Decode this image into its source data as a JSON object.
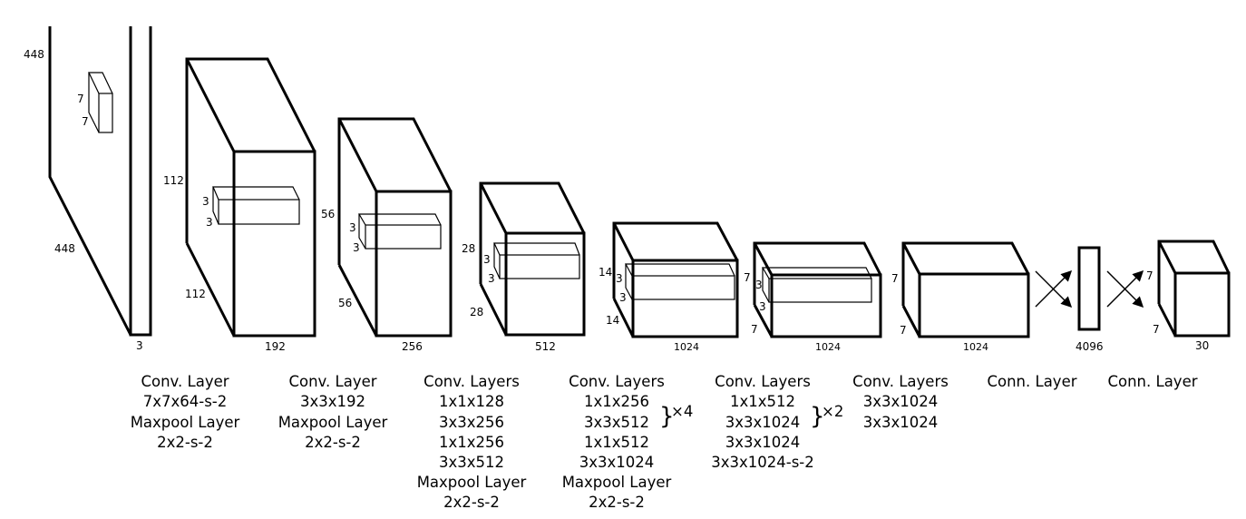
{
  "dimensions": {
    "input": {
      "height": "448",
      "width": "448",
      "depth": "3",
      "kernel_h": "7",
      "kernel_w": "7"
    },
    "block1": {
      "height": "112",
      "width": "112",
      "depth": "192",
      "kernel_h": "3",
      "kernel_w": "3"
    },
    "block2": {
      "height": "56",
      "width": "56",
      "depth": "256",
      "kernel_h": "3",
      "kernel_w": "3"
    },
    "block3": {
      "height": "28",
      "width": "28",
      "depth": "512",
      "kernel_h": "3",
      "kernel_w": "3"
    },
    "block4": {
      "height": "14",
      "width": "14",
      "depth": "1024",
      "kernel_h": "3",
      "kernel_w": "3"
    },
    "block5": {
      "height": "7",
      "width": "7",
      "depth": "1024",
      "kernel_h": "3",
      "kernel_w": "3"
    },
    "block6": {
      "height": "7",
      "width": "7",
      "depth": "1024"
    },
    "fc": {
      "depth": "4096"
    },
    "output": {
      "height": "7",
      "width": "7",
      "depth": "30"
    }
  },
  "captions": [
    [
      "Conv. Layer",
      "7x7x64-s-2",
      "Maxpool Layer",
      "2x2-s-2"
    ],
    [
      "Conv. Layer",
      "3x3x192",
      "Maxpool Layer",
      "2x2-s-2"
    ],
    [
      "Conv. Layers",
      "1x1x128",
      "3x3x256",
      "1x1x256",
      "3x3x512",
      "Maxpool Layer",
      "2x2-s-2"
    ],
    [
      "Conv. Layers",
      "1x1x256",
      "3x3x512",
      "1x1x512",
      "3x3x1024",
      "Maxpool Layer",
      "2x2-s-2"
    ],
    [
      "Conv. Layers",
      "1x1x512",
      "3x3x1024",
      "3x3x1024",
      "3x3x1024-s-2"
    ],
    [
      "Conv. Layers",
      "3x3x1024",
      "3x3x1024"
    ],
    [
      "Conn. Layer"
    ],
    [
      "Conn. Layer"
    ]
  ],
  "repeats": {
    "block4": "×4",
    "block5": "×2"
  }
}
